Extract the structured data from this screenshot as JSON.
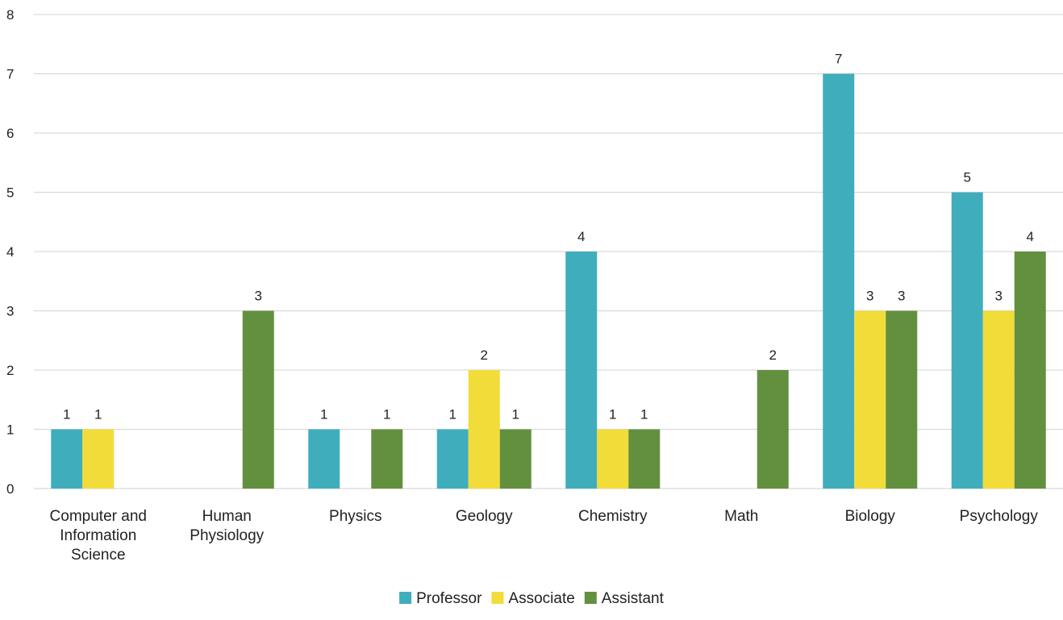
{
  "chart_data": {
    "type": "bar",
    "categories": [
      [
        "Computer and",
        "Information",
        "Science"
      ],
      [
        "Human",
        "Physiology"
      ],
      [
        "Physics"
      ],
      [
        "Geology"
      ],
      [
        "Chemistry"
      ],
      [
        "Math"
      ],
      [
        "Biology"
      ],
      [
        "Psychology"
      ]
    ],
    "series": [
      {
        "name": "Professor",
        "color": "#40adbd",
        "values": [
          1,
          null,
          1,
          1,
          4,
          null,
          7,
          5
        ]
      },
      {
        "name": "Associate",
        "color": "#f2dc3a",
        "values": [
          1,
          null,
          null,
          2,
          1,
          null,
          3,
          3
        ]
      },
      {
        "name": "Assistant",
        "color": "#63903f",
        "values": [
          null,
          3,
          1,
          1,
          1,
          2,
          3,
          4
        ]
      }
    ],
    "ylim": [
      0,
      8
    ],
    "yticks": [
      0,
      1,
      2,
      3,
      4,
      5,
      6,
      7,
      8
    ],
    "grid": true,
    "data_labels": true,
    "legend": "bottom-center",
    "title": "",
    "xlabel": "",
    "ylabel": ""
  }
}
